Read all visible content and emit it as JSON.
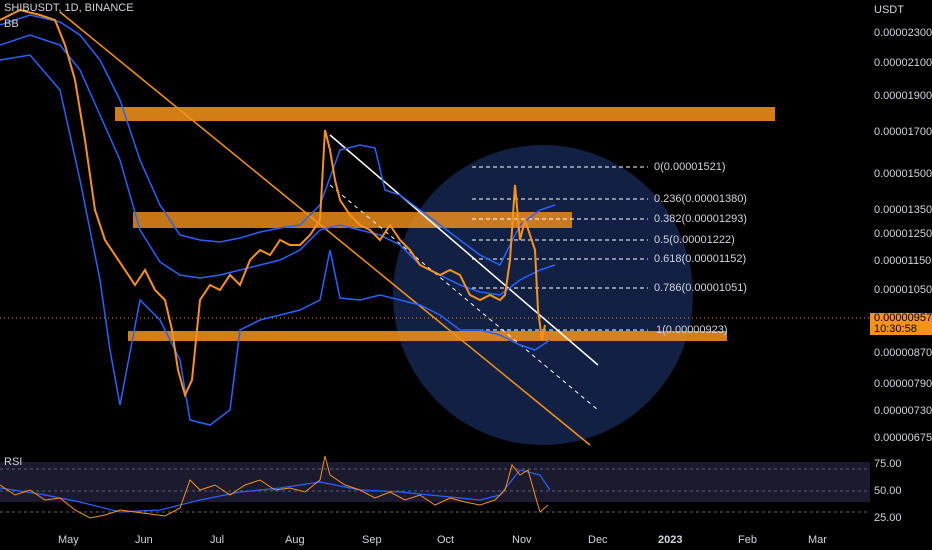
{
  "header": {
    "symbol": "SHIBUSDT, 1D, BINANCE",
    "indicator_bb": "BB",
    "indicator_rsi": "RSI"
  },
  "price_axis": {
    "currency": "USDT",
    "ticks": [
      "0.00002300",
      "0.00002100",
      "0.00001900",
      "0.00001700",
      "0.00001500",
      "0.00001350",
      "0.00001250",
      "0.00001150",
      "0.00001050",
      "0.00000870",
      "0.00000790",
      "0.00000730",
      "0.00000675"
    ]
  },
  "current_price": {
    "price": "0.00000957",
    "countdown": "10:30:58"
  },
  "fib_levels": [
    {
      "label": "0(0.00001521)"
    },
    {
      "label": "0.236(0.00001380)"
    },
    {
      "label": "0.382(0.00001293)"
    },
    {
      "label": "0.5(0.00001222)"
    },
    {
      "label": "0.618(0.00001152)"
    },
    {
      "label": "0.786(0.00001051)"
    },
    {
      "label": "1(0.00000923)"
    }
  ],
  "rsi_axis": {
    "ticks": [
      "75.00",
      "50.00",
      "25.00"
    ]
  },
  "time_axis": {
    "ticks": [
      "May",
      "Jun",
      "Jul",
      "Aug",
      "Sep",
      "Oct",
      "Nov",
      "Dec",
      "2023",
      "Feb",
      "Mar"
    ]
  },
  "colors": {
    "background": "#000000",
    "candle": "#f7931a",
    "zone": "#f7931a",
    "bollinger": "#2962ff",
    "rsi_line": "#f7931a",
    "rsi_ma": "#2962ff",
    "highlight_circle": "#1a2b55"
  }
}
